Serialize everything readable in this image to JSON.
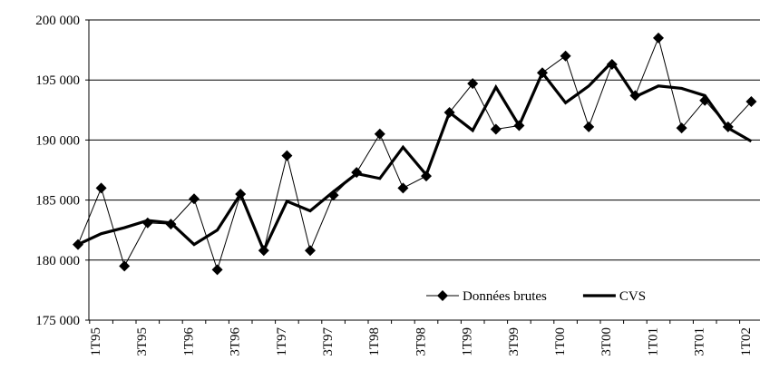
{
  "chart_data": {
    "type": "line",
    "categories": [
      "1T95",
      null,
      "3T95",
      null,
      "1T96",
      null,
      "3T96",
      null,
      "1T97",
      null,
      "3T97",
      null,
      "1T98",
      null,
      "3T98",
      null,
      "1T99",
      null,
      "3T99",
      null,
      "1T00",
      null,
      "3T00",
      null,
      "1T01",
      null,
      "3T01",
      null,
      "1T02",
      null
    ],
    "series": [
      {
        "name": "Données brutes",
        "color": "#000000",
        "marker": "diamond",
        "values": [
          181300,
          186000,
          179500,
          183100,
          183000,
          185100,
          179200,
          185500,
          180800,
          188700,
          180800,
          185400,
          187300,
          190500,
          186000,
          187000,
          192300,
          194700,
          190900,
          191200,
          195600,
          197000,
          191100,
          196300,
          193700,
          198500,
          191000,
          193300,
          191100,
          193200
        ]
      },
      {
        "name": "CVS",
        "color": "#000000",
        "values": [
          181300,
          182200,
          182700,
          183300,
          183100,
          181300,
          182500,
          185500,
          180800,
          184900,
          184100,
          185700,
          187200,
          186800,
          189400,
          187100,
          192300,
          190800,
          194400,
          191200,
          195600,
          193100,
          194500,
          196500,
          193600,
          194500,
          194300,
          193700,
          191000,
          189900
        ]
      }
    ],
    "ylim": [
      175000,
      200000
    ],
    "yticks": [
      {
        "value": 175000,
        "label": "175 000"
      },
      {
        "value": 180000,
        "label": "180 000"
      },
      {
        "value": 185000,
        "label": "185 000"
      },
      {
        "value": 190000,
        "label": "190 000"
      },
      {
        "value": 195000,
        "label": "195 000"
      },
      {
        "value": 200000,
        "label": "200 000"
      }
    ],
    "grid": true,
    "legend": "lower right"
  }
}
